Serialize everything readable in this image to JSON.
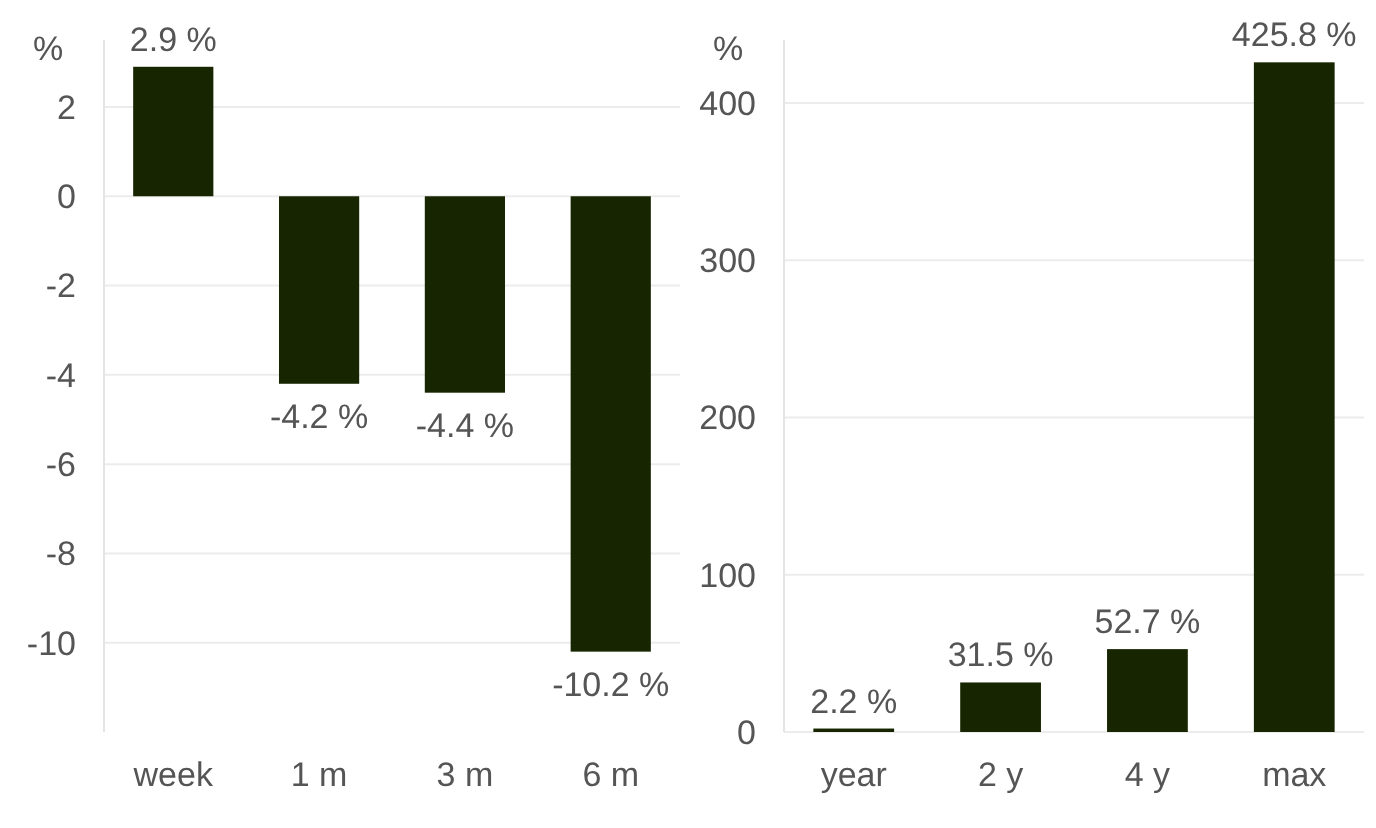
{
  "chart_data": [
    {
      "type": "bar",
      "ylabel": "%",
      "categories": [
        "week",
        "1 m",
        "3 m",
        "6 m"
      ],
      "values": [
        2.9,
        -4.2,
        -4.4,
        -10.2
      ],
      "color": "#172600",
      "value_labels": [
        "2.9 %",
        "-4.2 %",
        "-4.4 %",
        "-10.2 %"
      ],
      "ylim": [
        -12,
        3.5
      ],
      "yticks": [
        2,
        0,
        -2,
        -4,
        -6,
        -8,
        -10
      ],
      "grid": "y"
    },
    {
      "type": "bar",
      "ylabel": "%",
      "categories": [
        "year",
        "2 y",
        "4 y",
        "max"
      ],
      "values": [
        2.2,
        31.5,
        52.7,
        425.8
      ],
      "color": "#172600",
      "value_labels": [
        "2.2 %",
        "31.5 %",
        "52.7 %",
        "425.8 %"
      ],
      "ylim": [
        0,
        440
      ],
      "yticks": [
        0,
        100,
        200,
        300,
        400
      ],
      "grid": "y"
    }
  ]
}
